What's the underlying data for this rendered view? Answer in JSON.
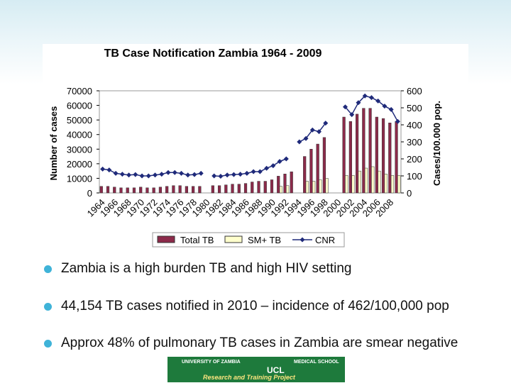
{
  "chart_data": {
    "type": "bar_line",
    "title": "TB Case Notification Zambia 1964 - 2009",
    "y_label": "Number of cases",
    "y2_label": "Cases/100.000 pop.",
    "categories": [
      "1964",
      null,
      "1966",
      null,
      "1968",
      null,
      "1970",
      null,
      "1972",
      null,
      "1974",
      null,
      "1976",
      null,
      "1978",
      null,
      "1980",
      null,
      "1982",
      null,
      "1984",
      null,
      "1986",
      null,
      "1988",
      null,
      "1990",
      null,
      "1992",
      null,
      "1994",
      null,
      "1996",
      null,
      "1998",
      null,
      "2000",
      null,
      "2002",
      null,
      "2004",
      null,
      "2006",
      null,
      "2008",
      null
    ],
    "series": [
      {
        "name": "Total TB",
        "kind": "bar",
        "color": "#8c2a4a",
        "values": [
          4500,
          4500,
          4000,
          3500,
          3500,
          3500,
          4000,
          3500,
          3500,
          4000,
          4500,
          5000,
          5000,
          4500,
          4500,
          4500,
          null,
          5000,
          5000,
          5500,
          6000,
          6000,
          6500,
          7500,
          8000,
          8000,
          9000,
          11500,
          13000,
          14500,
          null,
          25000,
          30000,
          33500,
          38000,
          null,
          null,
          52000,
          49000,
          54000,
          58000,
          58000,
          52000,
          51000,
          48000,
          49000
        ]
      },
      {
        "name": "SM+ TB",
        "kind": "bar",
        "color": "#ffffcc",
        "values": [
          null,
          null,
          null,
          null,
          null,
          null,
          null,
          null,
          null,
          null,
          null,
          null,
          null,
          null,
          null,
          null,
          null,
          null,
          null,
          null,
          null,
          null,
          null,
          null,
          null,
          null,
          null,
          4500,
          5000,
          null,
          null,
          8000,
          8000,
          9000,
          10000,
          null,
          null,
          12000,
          12000,
          15000,
          17000,
          18000,
          15000,
          13000,
          12000,
          12000
        ]
      },
      {
        "name": "CNR",
        "kind": "line",
        "axis": "y2",
        "color": "#1f2a7a",
        "values": [
          140,
          135,
          115,
          110,
          105,
          108,
          100,
          100,
          105,
          110,
          120,
          120,
          115,
          105,
          108,
          115,
          null,
          100,
          98,
          105,
          108,
          110,
          115,
          125,
          125,
          145,
          160,
          185,
          200,
          null,
          300,
          320,
          370,
          360,
          410,
          null,
          null,
          505,
          460,
          530,
          570,
          560,
          540,
          510,
          490,
          420
        ]
      }
    ],
    "ylim": [
      0,
      70000
    ],
    "yticks": [
      0,
      10000,
      20000,
      30000,
      40000,
      50000,
      60000,
      70000
    ],
    "y2lim": [
      0,
      600
    ],
    "y2ticks": [
      0,
      100,
      200,
      300,
      400,
      500,
      600
    ]
  },
  "bullets": [
    "Zambia is a high burden TB and high HIV setting",
    "44,154 TB cases notified in 2010 – incidence of 462/100,000 pop",
    "Approx 48% of pulmonary TB cases in Zambia are smear negative"
  ],
  "logo": {
    "left": "UNIVERSITY OF ZAMBIA",
    "right": "MEDICAL SCHOOL",
    "center": "UCL",
    "bottom": "Research and Training Project"
  }
}
